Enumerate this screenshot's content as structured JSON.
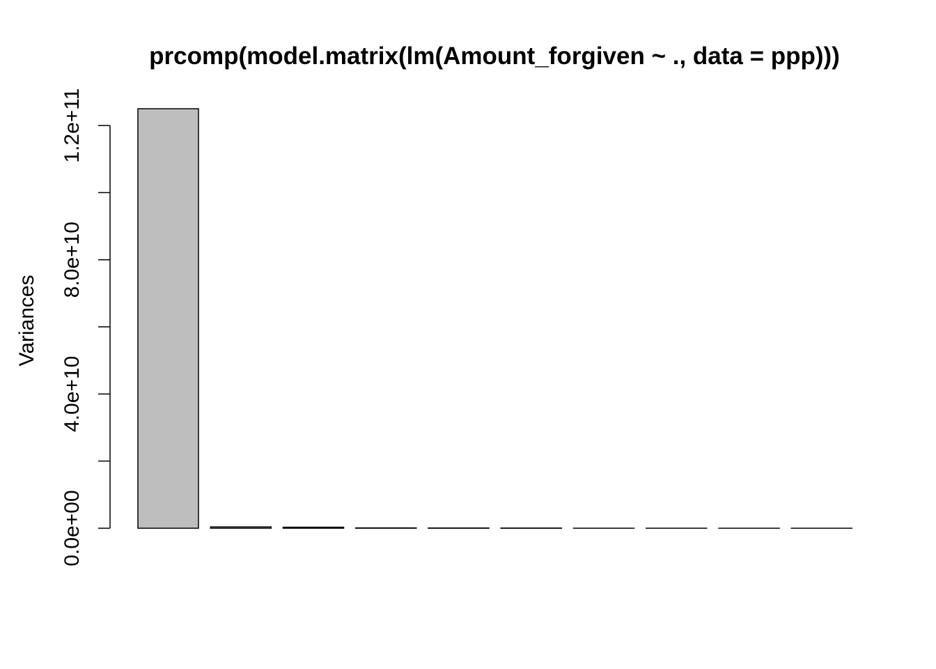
{
  "chart_data": {
    "type": "bar",
    "title": "prcomp(model.matrix(lm(Amount_forgiven ~ ., data = ppp)))",
    "xlabel": "",
    "ylabel": "Variances",
    "categories": [
      "",
      "",
      "",
      "",
      "",
      "",
      "",
      "",
      "",
      ""
    ],
    "values": [
      125000000000,
      400000000,
      300000000,
      100000000,
      80000000,
      60000000,
      10000000,
      5000000,
      3000000,
      1000000
    ],
    "ylim": [
      0,
      130000000000
    ],
    "y_ticks": [
      0,
      20000000000,
      40000000000,
      60000000000,
      80000000000,
      100000000000,
      120000000000
    ],
    "y_tick_labels": [
      "0.0e+00",
      "",
      "4.0e+10",
      "",
      "8.0e+10",
      "",
      "1.2e+11"
    ],
    "grid": false,
    "legend": "none",
    "colors": {
      "bar_fill": "#bebebe",
      "bar_stroke": "#000000",
      "axis": "#000000",
      "background": "#ffffff"
    }
  }
}
